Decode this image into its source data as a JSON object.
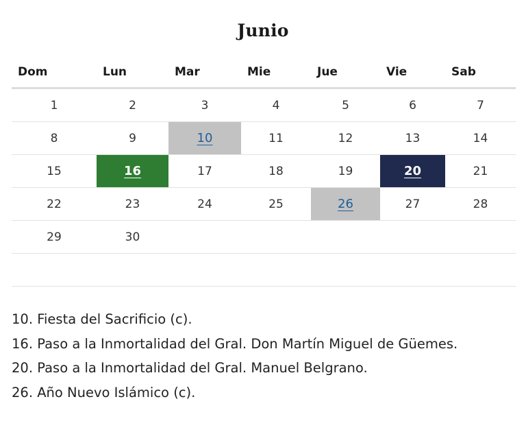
{
  "calendar": {
    "month": "Junio",
    "weekdays": [
      "Dom",
      "Lun",
      "Mar",
      "Mie",
      "Jue",
      "Vie",
      "Sab"
    ],
    "weeks": [
      [
        "1",
        "2",
        "3",
        "4",
        "5",
        "6",
        "7"
      ],
      [
        "8",
        "9",
        "10",
        "11",
        "12",
        "13",
        "14"
      ],
      [
        "15",
        "16",
        "17",
        "18",
        "19",
        "20",
        "21"
      ],
      [
        "22",
        "23",
        "24",
        "25",
        "26",
        "27",
        "28"
      ],
      [
        "29",
        "30",
        "",
        "",
        "",
        "",
        ""
      ],
      [
        "",
        "",
        "",
        "",
        "",
        "",
        ""
      ]
    ],
    "highlights": {
      "10": "#c2c2c2",
      "16": "#2e7d32",
      "20": "#1f2a4e",
      "26": "#c2c2c2"
    }
  },
  "holidays": [
    "10. Fiesta del Sacrificio (c).",
    "16. Paso a la Inmortalidad del Gral. Don Martín Miguel de Güemes.",
    "20. Paso a la Inmortalidad del Gral. Manuel Belgrano.",
    "26. Año Nuevo Islámico (c)."
  ]
}
